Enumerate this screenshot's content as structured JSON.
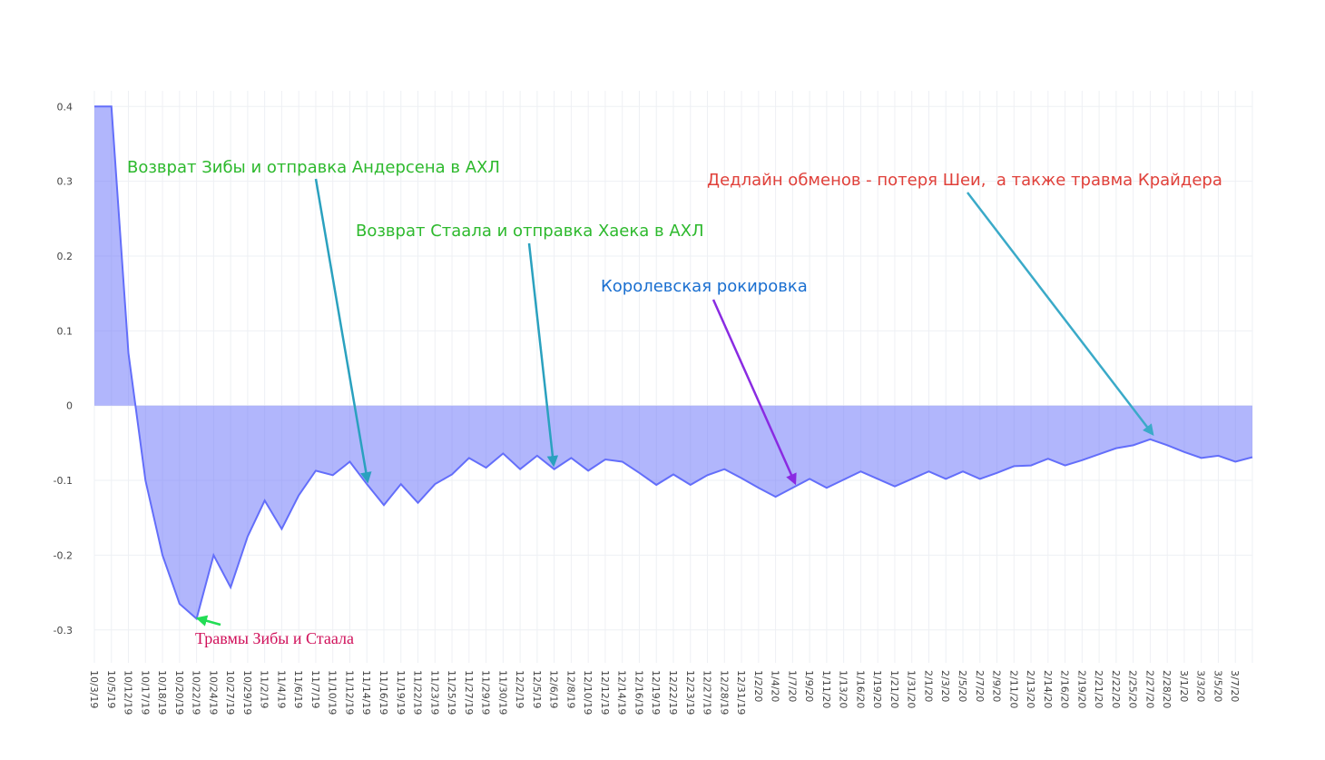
{
  "chart_data": {
    "type": "area",
    "categories": [
      "10/3/19",
      "10/5/19",
      "10/12/19",
      "10/17/19",
      "10/18/19",
      "10/20/19",
      "10/22/19",
      "10/24/19",
      "10/27/19",
      "10/29/19",
      "11/2/19",
      "11/4/19",
      "11/6/19",
      "11/7/19",
      "11/10/19",
      "11/12/19",
      "11/14/19",
      "11/16/19",
      "11/19/19",
      "11/22/19",
      "11/23/19",
      "11/25/19",
      "11/27/19",
      "11/29/19",
      "11/30/19",
      "12/2/19",
      "12/5/19",
      "12/6/19",
      "12/8/19",
      "12/10/19",
      "12/12/19",
      "12/14/19",
      "12/16/19",
      "12/19/19",
      "12/22/19",
      "12/23/19",
      "12/27/19",
      "12/28/19",
      "12/31/19",
      "1/2/20",
      "1/4/20",
      "1/7/20",
      "1/9/20",
      "1/11/20",
      "1/13/20",
      "1/16/20",
      "1/19/20",
      "1/21/20",
      "1/31/20",
      "2/1/20",
      "2/3/20",
      "2/5/20",
      "2/7/20",
      "2/9/20",
      "2/11/20",
      "2/13/20",
      "2/14/20",
      "2/16/20",
      "2/19/20",
      "2/21/20",
      "2/22/20",
      "2/25/20",
      "2/27/20",
      "2/28/20",
      "3/1/20",
      "3/3/20",
      "3/5/20",
      "3/7/20",
      null
    ],
    "series": [
      {
        "color": "#636efa",
        "fill_color": "rgba(99,110,250,0.5)",
        "values": [
          0.4,
          0.4,
          0.07,
          -0.1,
          -0.2,
          -0.265,
          -0.285,
          -0.2,
          -0.243,
          -0.175,
          -0.127,
          -0.165,
          -0.12,
          -0.087,
          -0.093,
          -0.075,
          -0.105,
          -0.133,
          -0.105,
          -0.13,
          -0.105,
          -0.092,
          -0.07,
          -0.083,
          -0.064,
          -0.085,
          -0.067,
          -0.085,
          -0.07,
          -0.087,
          -0.072,
          -0.075,
          -0.09,
          -0.106,
          -0.092,
          -0.106,
          -0.093,
          -0.085,
          -0.097,
          -0.11,
          -0.122,
          -0.11,
          -0.098,
          -0.11,
          -0.099,
          -0.088,
          -0.098,
          -0.108,
          -0.098,
          -0.088,
          -0.098,
          -0.088,
          -0.098,
          -0.09,
          -0.081,
          -0.08,
          -0.071,
          -0.08,
          -0.073,
          -0.065,
          -0.057,
          -0.053,
          -0.045,
          -0.053,
          -0.062,
          -0.07,
          -0.067,
          -0.075,
          -0.069
        ]
      }
    ],
    "ylim": [
      -0.344,
      0.421
    ],
    "yticks": [
      -0.3,
      -0.2,
      -0.1,
      0,
      0.1,
      0.2,
      0.3,
      0.4
    ],
    "grid": true,
    "annotations": [
      {
        "text": "Возврат Зибы и отправка Андерсена в АХЛ",
        "color": "#2db92d",
        "arrow_color": "#2aa1bf"
      },
      {
        "text": "Возврат Стаала и отправка Хаека в АХЛ",
        "color": "#2db92d",
        "arrow_color": "#2aa1bf"
      },
      {
        "text": "Королевская рокировка",
        "color": "#1a6fd0",
        "arrow_color": "#8a2be2"
      },
      {
        "text": "Дедлайн обменов - потеря Шеи,  а также травма Крайдера",
        "color": "#e0403a",
        "arrow_color": "#3aaac8"
      },
      {
        "text": "Травмы Зибы и Стаала",
        "color": "#d0105a",
        "arrow_color": "#22dd55"
      }
    ]
  }
}
